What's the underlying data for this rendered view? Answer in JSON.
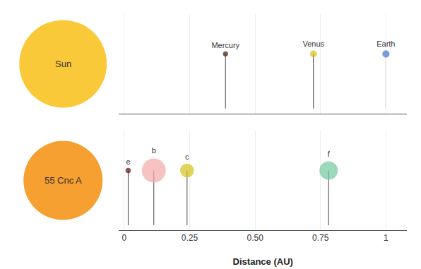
{
  "chart_data": [
    {
      "type": "scatter",
      "star": {
        "name": "Sun",
        "color": "#F9C93A"
      },
      "x": [
        0.387,
        0.723,
        1.0
      ],
      "labels": [
        "Mercury",
        "Venus",
        "Earth"
      ],
      "sizes": [
        28,
        50,
        55
      ],
      "colors": [
        "#4A1A08",
        "#D4C218",
        "#4472C4"
      ],
      "xlim": [
        -0.02,
        1.08
      ],
      "xticks": [
        0,
        0.25,
        {
          "value": 0.5,
          "label": "0.50"
        },
        0.75,
        1
      ],
      "grid": true,
      "tick_labels": false
    },
    {
      "type": "scatter",
      "star": {
        "name": "55 Cnc A",
        "color": "#F5A030"
      },
      "x": [
        0.015,
        0.113,
        0.24,
        0.781
      ],
      "labels": [
        "e",
        "b",
        "c",
        "f"
      ],
      "sizes": [
        30,
        600,
        200,
        350
      ],
      "colors": [
        "#5C1010",
        "#F4A8A8",
        "#D4C218",
        "#70C8A0"
      ],
      "xlabel": "Distance (AU)",
      "xlim": [
        -0.02,
        1.08
      ],
      "xticks": [
        0,
        0.25,
        {
          "value": 0.5,
          "label": "0.50"
        },
        0.75,
        1
      ],
      "grid": true
    }
  ]
}
